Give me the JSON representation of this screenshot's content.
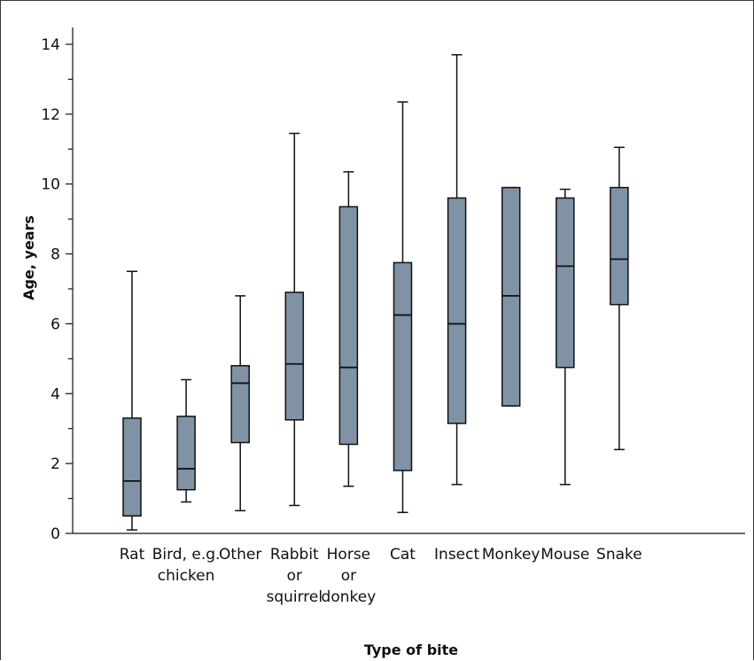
{
  "chart_data": {
    "type": "boxplot",
    "xlabel": "Type of bite",
    "ylabel": "Age, years",
    "ylim": [
      0,
      14.7
    ],
    "yticks": [
      0,
      2,
      4,
      6,
      8,
      10,
      12,
      14
    ],
    "box_color": "#7f93a4",
    "line_color": "#111111",
    "categories": [
      {
        "label": [
          "Rat"
        ],
        "min": 0.1,
        "q1": 0.5,
        "median": 1.5,
        "q3": 3.3,
        "max": 7.5
      },
      {
        "label": [
          "Bird, e.g.",
          "chicken"
        ],
        "min": 0.9,
        "q1": 1.25,
        "median": 1.85,
        "q3": 3.35,
        "max": 4.4
      },
      {
        "label": [
          "Other"
        ],
        "min": 0.65,
        "q1": 2.6,
        "median": 4.3,
        "q3": 4.8,
        "max": 6.8
      },
      {
        "label": [
          "Rabbit",
          "or",
          "squirrel"
        ],
        "min": 0.8,
        "q1": 3.25,
        "median": 4.85,
        "q3": 6.9,
        "max": 11.45
      },
      {
        "label": [
          "Horse",
          "or",
          "donkey"
        ],
        "min": 1.35,
        "q1": 2.55,
        "median": 4.75,
        "q3": 9.35,
        "max": 10.35
      },
      {
        "label": [
          "Cat"
        ],
        "min": 0.6,
        "q1": 1.8,
        "median": 6.25,
        "q3": 7.75,
        "max": 12.35
      },
      {
        "label": [
          "Insect"
        ],
        "min": 1.4,
        "q1": 3.15,
        "median": 6.0,
        "q3": 9.6,
        "max": 13.7
      },
      {
        "label": [
          "Monkey"
        ],
        "min": 3.65,
        "q1": 3.65,
        "median": 6.8,
        "q3": 9.9,
        "max": 9.9
      },
      {
        "label": [
          "Mouse"
        ],
        "min": 1.4,
        "q1": 4.75,
        "median": 7.65,
        "q3": 9.6,
        "max": 9.85
      },
      {
        "label": [
          "Snake"
        ],
        "min": 2.4,
        "q1": 6.55,
        "median": 7.85,
        "q3": 9.9,
        "max": 11.05
      }
    ]
  }
}
